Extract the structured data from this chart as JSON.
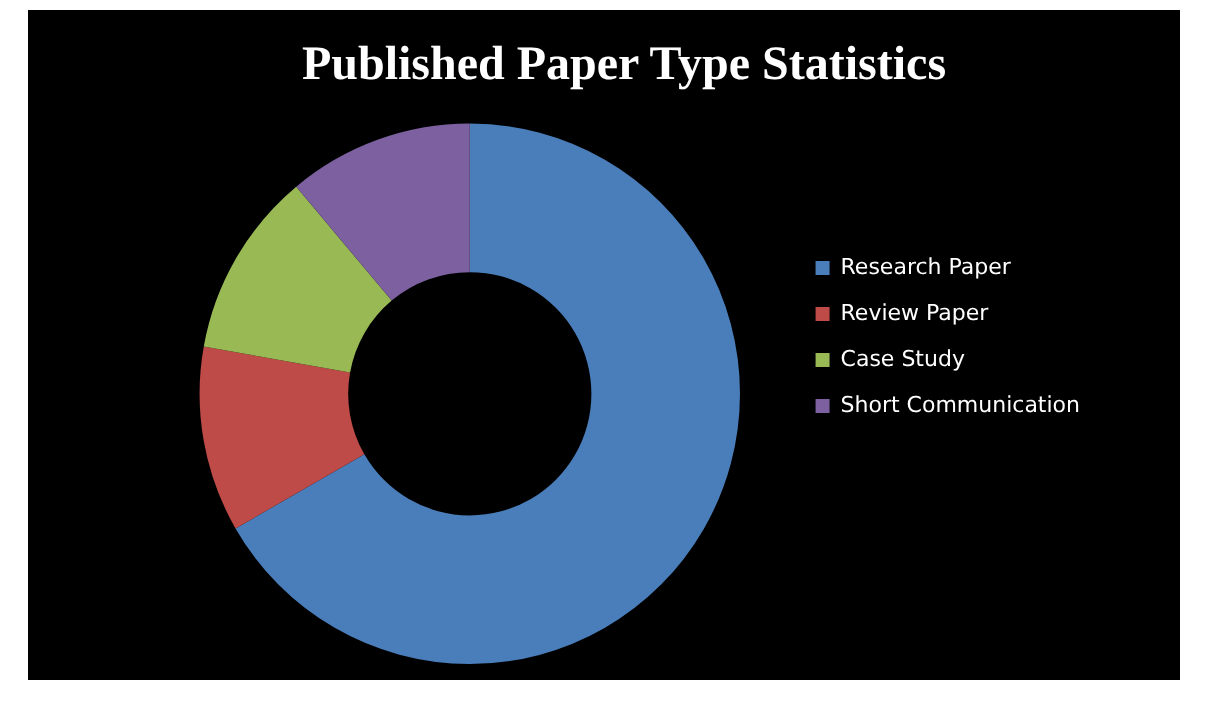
{
  "chart_data": {
    "type": "donut",
    "title": "Published Paper Type Statistics",
    "categories": [
      "Research Paper",
      "Review Paper",
      "Case Study",
      "Short Communication"
    ],
    "values": [
      66.7,
      11.1,
      11.1,
      11.1
    ],
    "colors": [
      "#4a7ebb",
      "#be4b48",
      "#98b954",
      "#7d60a0"
    ],
    "legend": "right"
  }
}
